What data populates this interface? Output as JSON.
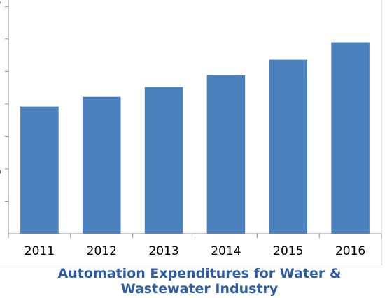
{
  "chart_data": {
    "type": "bar",
    "title": "Automation Expenditures for Water & Wastewater Industry",
    "categories": [
      "2011",
      "2012",
      "2013",
      "2014",
      "2015",
      "2016"
    ],
    "series": [
      {
        "values": [
          39.2,
          42.2,
          45.2,
          48.8,
          53.6,
          59.0
        ]
      }
    ],
    "ylim": [
      0,
      72
    ],
    "grid": false,
    "legend": "none",
    "colors": {
      "bar": "#4a81bd",
      "title": "#2e5da8",
      "axis": "#888888"
    }
  }
}
